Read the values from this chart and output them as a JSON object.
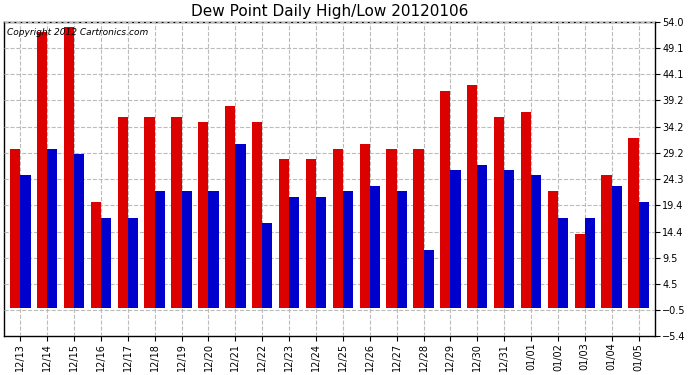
{
  "title": "Dew Point Daily High/Low 20120106",
  "copyright": "Copyright 2012 Cartronics.com",
  "dates": [
    "12/13",
    "12/14",
    "12/15",
    "12/16",
    "12/17",
    "12/18",
    "12/19",
    "12/20",
    "12/21",
    "12/22",
    "12/23",
    "12/24",
    "12/25",
    "12/26",
    "12/27",
    "12/28",
    "12/29",
    "12/30",
    "12/31",
    "01/01",
    "01/02",
    "01/03",
    "01/04",
    "01/05"
  ],
  "highs": [
    30,
    52,
    53,
    20,
    36,
    36,
    36,
    35,
    38,
    35,
    28,
    28,
    30,
    31,
    30,
    30,
    41,
    42,
    36,
    37,
    22,
    14,
    25,
    32
  ],
  "lows": [
    25,
    30,
    29,
    17,
    17,
    22,
    22,
    22,
    31,
    16,
    21,
    21,
    22,
    23,
    22,
    11,
    26,
    27,
    26,
    25,
    17,
    17,
    23,
    20
  ],
  "high_color": "#dd0000",
  "low_color": "#0000cc",
  "ylim_min": -5.4,
  "ylim_max": 54.0,
  "yticks": [
    -5.4,
    -0.5,
    4.5,
    9.5,
    14.4,
    19.4,
    24.3,
    29.2,
    34.2,
    39.2,
    44.1,
    49.1,
    54.0
  ],
  "background_color": "#ffffff",
  "grid_color": "#bbbbbb",
  "bar_width": 0.38,
  "title_fontsize": 11,
  "tick_fontsize": 7,
  "copyright_fontsize": 6.5,
  "fig_width": 6.9,
  "fig_height": 3.75,
  "dpi": 100
}
